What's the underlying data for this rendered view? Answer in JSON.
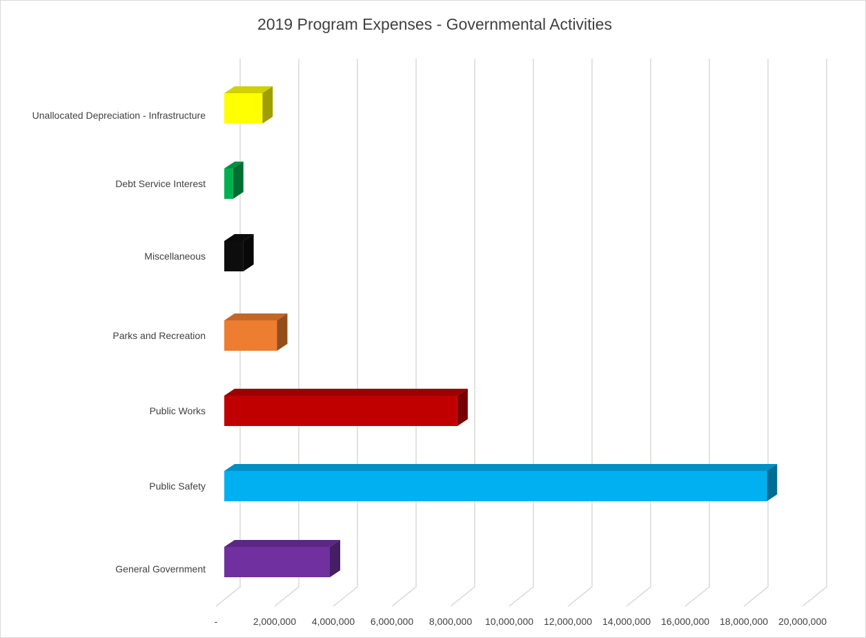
{
  "chart_data": {
    "type": "bar",
    "orientation": "horizontal",
    "style": "3d",
    "title": "2019 Program Expenses - Governmental Activities",
    "xlabel": "",
    "ylabel": "",
    "categories": [
      "General Government",
      "Public Safety",
      "Public Works",
      "Parks and Recreation",
      "Miscellaneous",
      "Debt Service Interest",
      "Unallocated Depreciation - Infrastructure"
    ],
    "values": [
      3600000,
      18500000,
      7950000,
      1800000,
      650000,
      300000,
      1300000
    ],
    "colors": [
      "#7030a0",
      "#00b0f0",
      "#c00000",
      "#ed7d31",
      "#0d0d0d",
      "#00b050",
      "#ffff00"
    ],
    "xlim": [
      0,
      20000000
    ],
    "x_ticks": [
      0,
      2000000,
      4000000,
      6000000,
      8000000,
      10000000,
      12000000,
      14000000,
      16000000,
      18000000,
      20000000
    ],
    "x_tick_labels": [
      "-",
      "2,000,000",
      "4,000,000",
      "6,000,000",
      "8,000,000",
      "10,000,000",
      "12,000,000",
      "14,000,000",
      "16,000,000",
      "18,000,000",
      "20,000,000"
    ],
    "grid": true,
    "legend": "none"
  }
}
